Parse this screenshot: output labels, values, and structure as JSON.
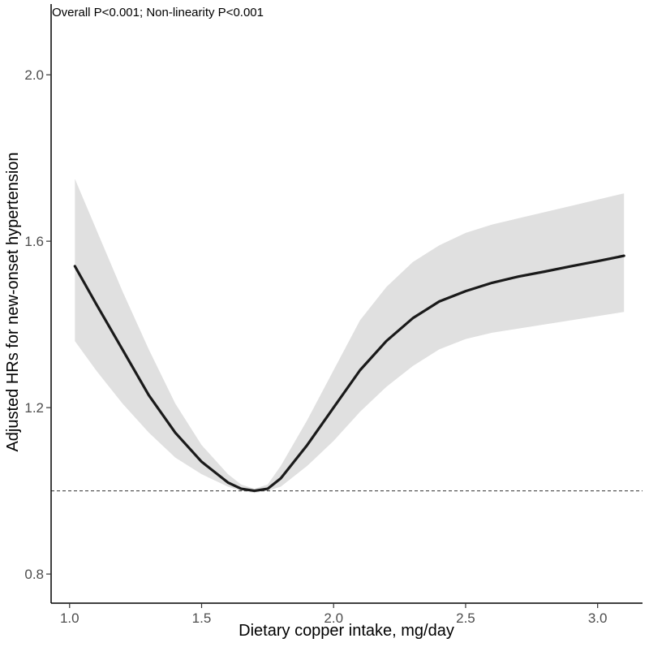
{
  "chart_data": {
    "type": "line",
    "annotation": "Overall P<0.001; Non-linearity P<0.001",
    "xlabel": "Dietary copper intake, mg/day",
    "ylabel": "Adjusted HRs for new-onset hypertension",
    "xlim": [
      0.93,
      3.17
    ],
    "ylim": [
      0.73,
      2.17
    ],
    "x_ticks": [
      1.0,
      1.5,
      2.0,
      2.5,
      3.0
    ],
    "x_tick_labels": [
      "1.0",
      "1.5",
      "2.0",
      "2.5",
      "3.0"
    ],
    "y_ticks": [
      0.8,
      1.2,
      1.6,
      2.0
    ],
    "y_tick_labels": [
      "0.8",
      "1.2",
      "1.6",
      "2.0"
    ],
    "reference_line": {
      "y": 1.0,
      "style": "dashed"
    },
    "grid": false,
    "series": [
      {
        "x": [
          1.02,
          1.1,
          1.2,
          1.3,
          1.4,
          1.5,
          1.6,
          1.65,
          1.7,
          1.75,
          1.8,
          1.9,
          2.0,
          2.1,
          2.2,
          2.3,
          2.4,
          2.5,
          2.6,
          2.7,
          2.8,
          2.9,
          3.0,
          3.1
        ],
        "y": [
          1.54,
          1.45,
          1.34,
          1.23,
          1.14,
          1.07,
          1.02,
          1.005,
          1.0,
          1.005,
          1.03,
          1.11,
          1.2,
          1.29,
          1.36,
          1.415,
          1.455,
          1.48,
          1.5,
          1.515,
          1.527,
          1.54,
          1.552,
          1.565
        ],
        "lower": [
          1.36,
          1.29,
          1.21,
          1.14,
          1.08,
          1.04,
          1.01,
          1.0,
          0.995,
          1.0,
          1.01,
          1.06,
          1.12,
          1.19,
          1.25,
          1.3,
          1.34,
          1.365,
          1.38,
          1.39,
          1.4,
          1.41,
          1.42,
          1.43
        ],
        "upper": [
          1.75,
          1.63,
          1.48,
          1.34,
          1.21,
          1.11,
          1.04,
          1.015,
          1.005,
          1.015,
          1.06,
          1.17,
          1.29,
          1.41,
          1.49,
          1.55,
          1.59,
          1.62,
          1.64,
          1.655,
          1.67,
          1.685,
          1.7,
          1.715
        ]
      }
    ],
    "colors": {
      "line": "#1a1a1a",
      "band": "#e0e0e0",
      "reference": "#555555",
      "axis": "#000000"
    }
  }
}
